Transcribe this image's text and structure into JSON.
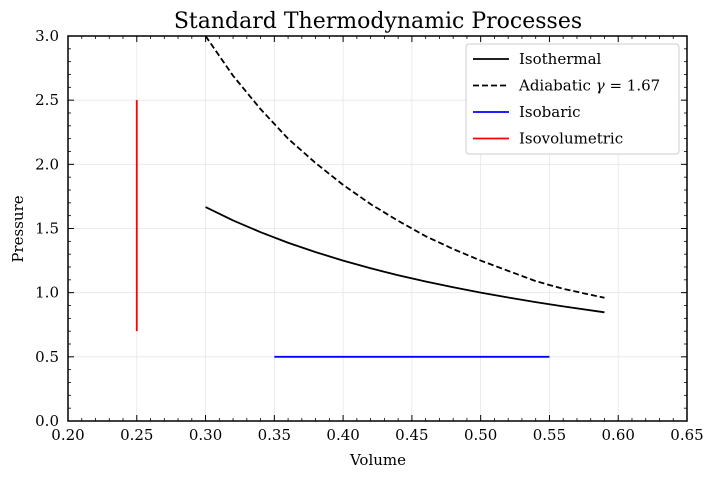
{
  "chart_data": {
    "type": "line",
    "title": "Standard Thermodynamic Processes",
    "xlabel": "Volume",
    "ylabel": "Pressure",
    "xlim": [
      0.2,
      0.65
    ],
    "ylim": [
      0.0,
      3.0
    ],
    "x_ticks": [
      "0.20",
      "0.25",
      "0.30",
      "0.35",
      "0.40",
      "0.45",
      "0.50",
      "0.55",
      "0.60",
      "0.65"
    ],
    "y_ticks": [
      "0.0",
      "0.5",
      "1.0",
      "1.5",
      "2.0",
      "2.5",
      "3.0"
    ],
    "grid": true,
    "legend_position": "top-right",
    "series": [
      {
        "name": "Isothermal",
        "color": "#000000",
        "dash": "solid",
        "x": [
          0.3,
          0.32,
          0.34,
          0.36,
          0.38,
          0.4,
          0.42,
          0.44,
          0.46,
          0.48,
          0.5,
          0.52,
          0.54,
          0.56,
          0.59
        ],
        "y": [
          1.667,
          1.563,
          1.471,
          1.389,
          1.316,
          1.25,
          1.19,
          1.136,
          1.087,
          1.042,
          1.0,
          0.962,
          0.926,
          0.893,
          0.847
        ]
      },
      {
        "name": "Adiabatic $\\gamma = 1.67$",
        "color": "#000000",
        "dash": "dashed",
        "x": [
          0.3,
          0.32,
          0.34,
          0.36,
          0.38,
          0.4,
          0.42,
          0.44,
          0.46,
          0.48,
          0.5,
          0.52,
          0.54,
          0.56,
          0.59
        ],
        "y": [
          3.0,
          2.69,
          2.43,
          2.2,
          2.01,
          1.84,
          1.69,
          1.56,
          1.44,
          1.34,
          1.25,
          1.17,
          1.09,
          1.03,
          0.96
        ]
      },
      {
        "name": "Isobaric",
        "color": "#0000ff",
        "dash": "solid",
        "x": [
          0.35,
          0.55
        ],
        "y": [
          0.5,
          0.5
        ]
      },
      {
        "name": "Isovolumetric",
        "color": "#ff0000",
        "dash": "solid",
        "x": [
          0.25,
          0.25
        ],
        "y": [
          2.5,
          0.7
        ]
      }
    ]
  }
}
